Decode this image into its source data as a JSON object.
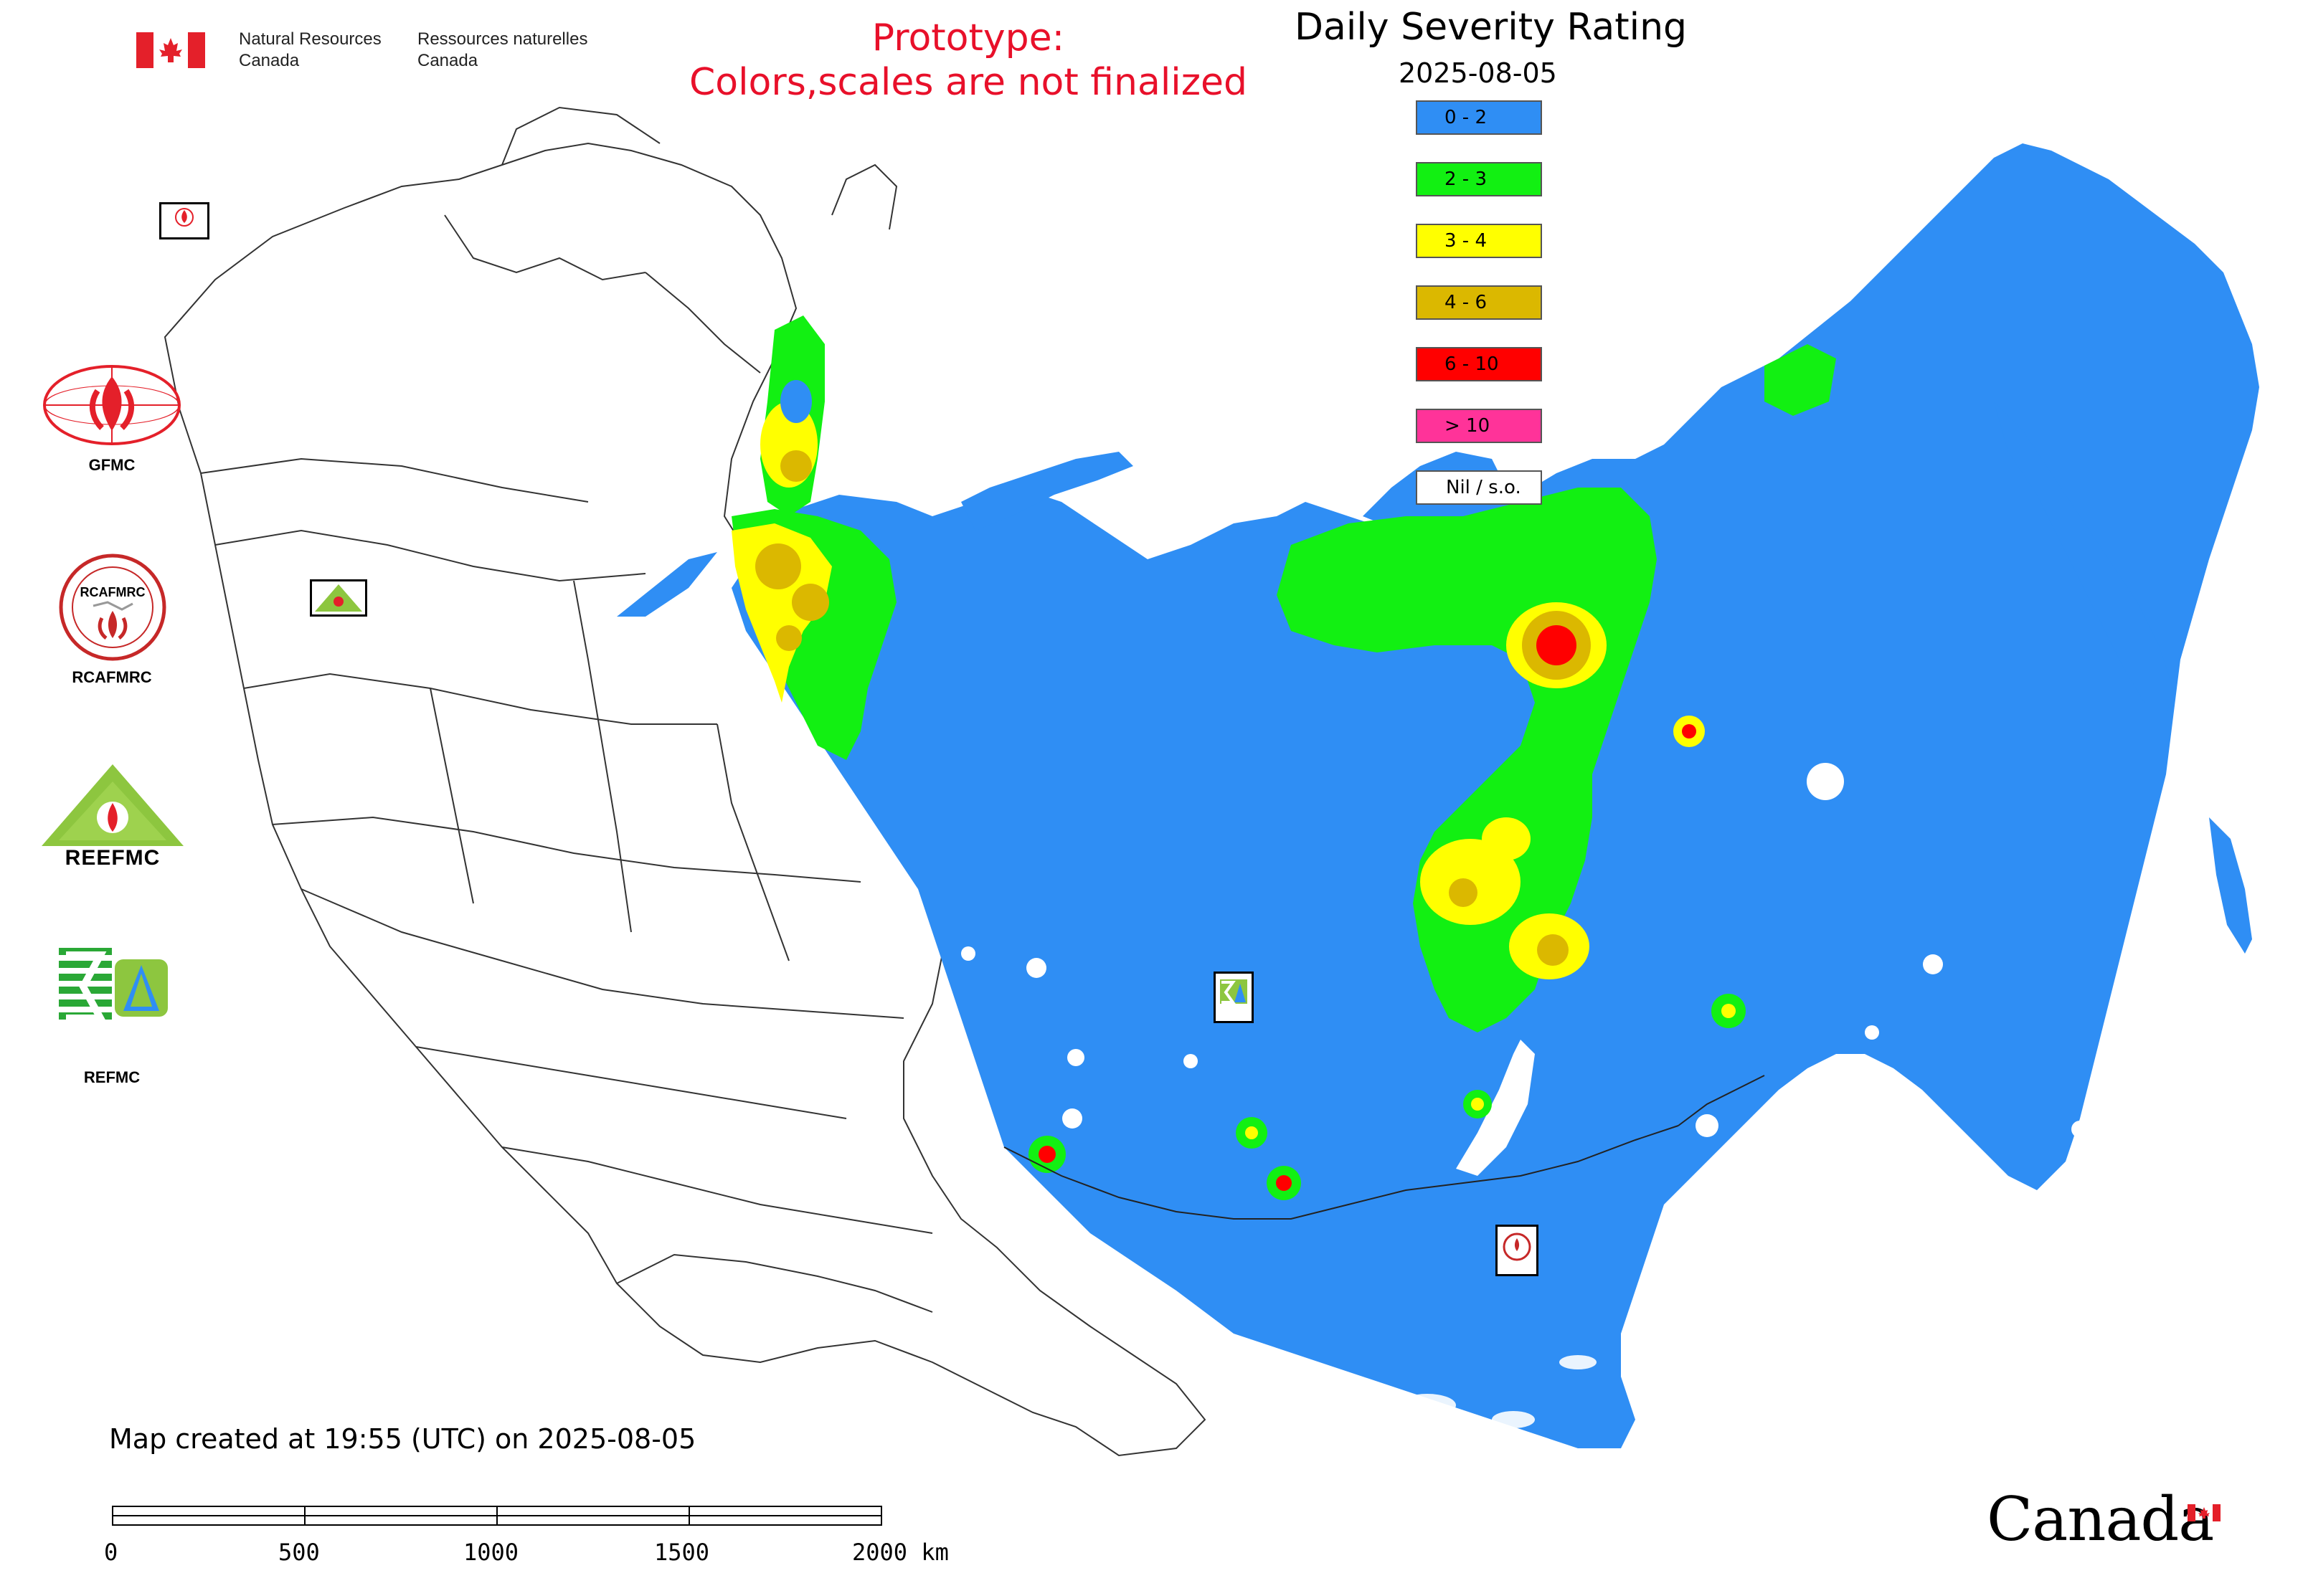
{
  "header": {
    "agency_en_line1": "Natural Resources",
    "agency_en_line2": "Canada",
    "agency_fr_line1": "Ressources naturelles",
    "agency_fr_line2": "Canada",
    "prototype_line1": "Prototype:",
    "prototype_line2": "Colors,scales are not finalized",
    "map_title": "Daily Severity Rating",
    "map_date": "2025-08-05"
  },
  "legend": {
    "items": [
      {
        "label": "0 - 2",
        "color": "#2f8ef4"
      },
      {
        "label": "2 - 3",
        "color": "#12f012"
      },
      {
        "label": "3 - 4",
        "color": "#ffff00"
      },
      {
        "label": "4 - 6",
        "color": "#dbb800"
      },
      {
        "label": "6 - 10",
        "color": "#ff0000"
      },
      {
        "label": "> 10",
        "color": "#ff3399"
      },
      {
        "label": "Nil / s.o.",
        "color": "#ffffff"
      }
    ]
  },
  "logos": [
    {
      "label": "GFMC",
      "icon": "gfmc-logo-icon"
    },
    {
      "label": "RCAFMRC",
      "icon": "rcafmrc-logo-icon"
    },
    {
      "label": "",
      "icon": "reefmc-logo-icon",
      "wordmark": "REEFMC"
    },
    {
      "label": "REFMC",
      "icon": "refmc-logo-icon"
    }
  ],
  "footer": {
    "created_text": "Map created at 19:55 (UTC) on 2025-08-05",
    "scale_labels": [
      "0",
      "500",
      "1000",
      "1500",
      "2000 km"
    ],
    "wordmark": "Canada"
  },
  "colors": {
    "sea_blue": "#2f8ef4",
    "flag_red": "#e4202a",
    "prototype_red": "#e8102a"
  }
}
